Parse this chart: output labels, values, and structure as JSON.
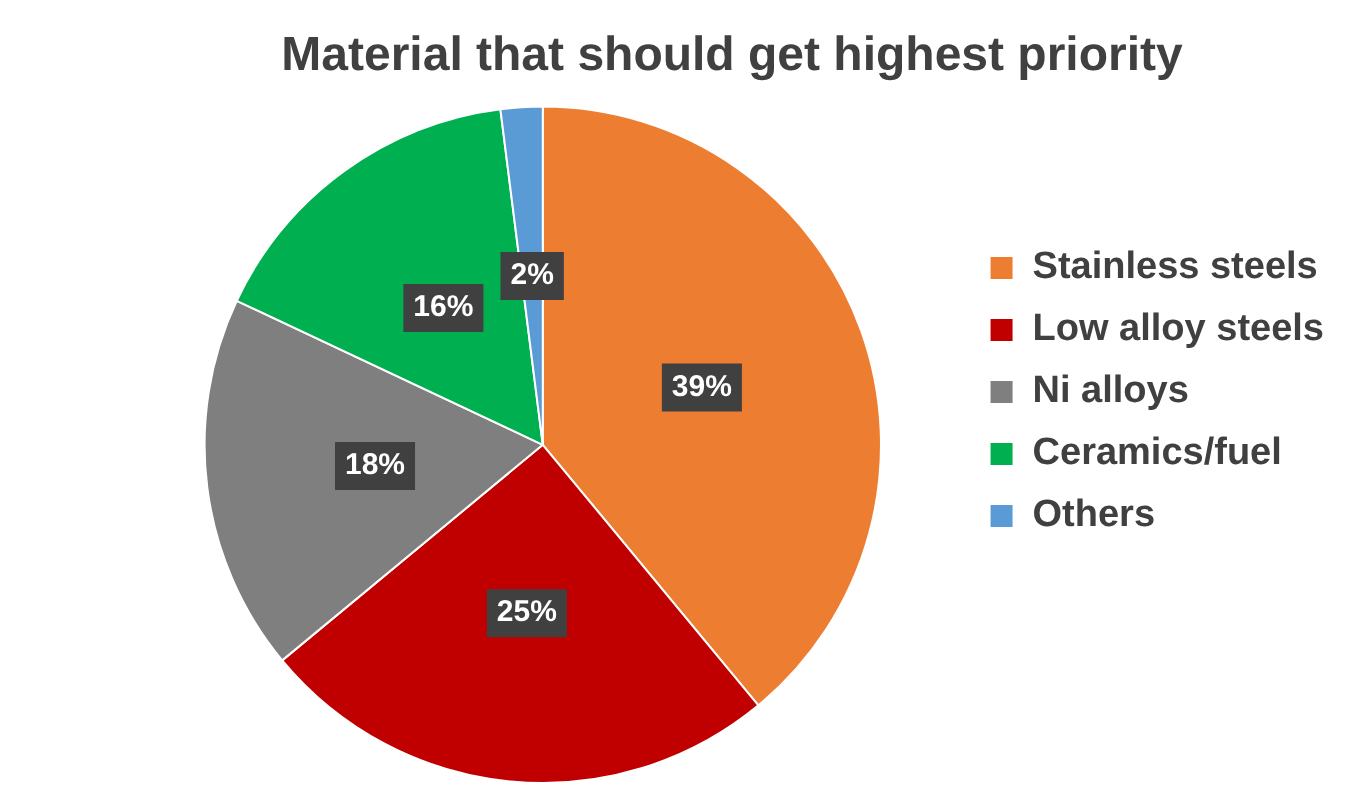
{
  "chart_data": {
    "type": "pie",
    "title": "Material that should get highest priority",
    "categories": [
      "Stainless steels",
      "Low alloy steels",
      "Ni alloys",
      "Ceramics/fuel",
      "Others"
    ],
    "values": [
      39,
      25,
      18,
      16,
      2
    ],
    "colors": [
      "#ed7d31",
      "#c00000",
      "#7f7f7f",
      "#00b050",
      "#5b9bd5"
    ],
    "value_labels": [
      "39%",
      "25%",
      "18%",
      "16%",
      "2%"
    ],
    "legend": "right"
  }
}
